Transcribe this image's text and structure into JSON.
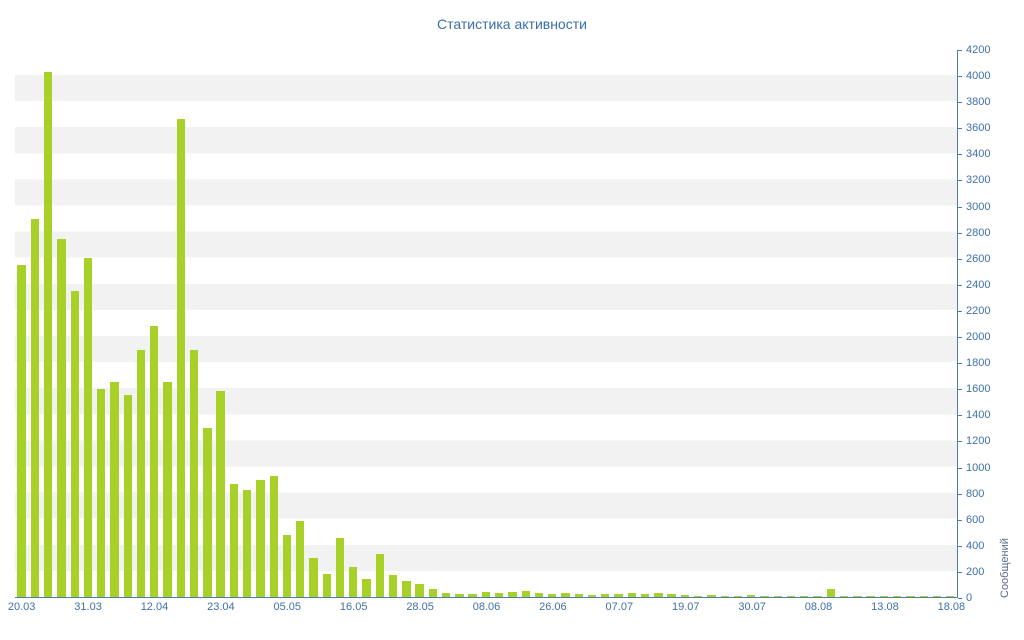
{
  "page": {
    "background": "#ffffff"
  },
  "chart_data": {
    "type": "bar",
    "title": "Статистика активности",
    "xlabel": "",
    "ylabel": "Сообщений",
    "ylim": [
      0,
      4200
    ],
    "grid": "striped-horizontal-bands",
    "legend": "none",
    "yticks": [
      0,
      200,
      400,
      600,
      800,
      1000,
      1200,
      1400,
      1600,
      1800,
      2000,
      2200,
      2400,
      2600,
      2800,
      3000,
      3200,
      3400,
      3600,
      3800,
      4000,
      4200
    ],
    "x_ticks": [
      {
        "label": "20.03",
        "i": 0
      },
      {
        "label": "31.03",
        "i": 5
      },
      {
        "label": "12.04",
        "i": 10
      },
      {
        "label": "23.04",
        "i": 15
      },
      {
        "label": "05.05",
        "i": 20
      },
      {
        "label": "16.05",
        "i": 25
      },
      {
        "label": "28.05",
        "i": 30
      },
      {
        "label": "08.06",
        "i": 35
      },
      {
        "label": "26.06",
        "i": 40
      },
      {
        "label": "07.07",
        "i": 45
      },
      {
        "label": "19.07",
        "i": 50
      },
      {
        "label": "30.07",
        "i": 55
      },
      {
        "label": "08.08",
        "i": 60
      },
      {
        "label": "13.08",
        "i": 65
      },
      {
        "label": "18.08",
        "i": 70
      }
    ],
    "values": [
      2550,
      2900,
      4030,
      2750,
      2350,
      2600,
      1600,
      1650,
      1550,
      1900,
      2080,
      1650,
      3670,
      1900,
      1300,
      1580,
      870,
      820,
      900,
      930,
      480,
      580,
      300,
      180,
      450,
      230,
      140,
      330,
      170,
      120,
      100,
      60,
      30,
      25,
      20,
      40,
      30,
      40,
      50,
      30,
      25,
      30,
      20,
      15,
      25,
      20,
      30,
      25,
      30,
      20,
      15,
      10,
      15,
      10,
      10,
      15,
      10,
      10,
      10,
      5,
      10,
      65,
      10,
      5,
      5,
      10,
      5,
      5,
      5,
      5,
      5
    ],
    "colors": {
      "bar": "#a7d129",
      "stripe": "#f2f2f2",
      "axis": "#4d7ab0",
      "tick_label": "#3f6fa8",
      "title": "#3a6da8",
      "ylabel": "#5a6b8c"
    }
  }
}
